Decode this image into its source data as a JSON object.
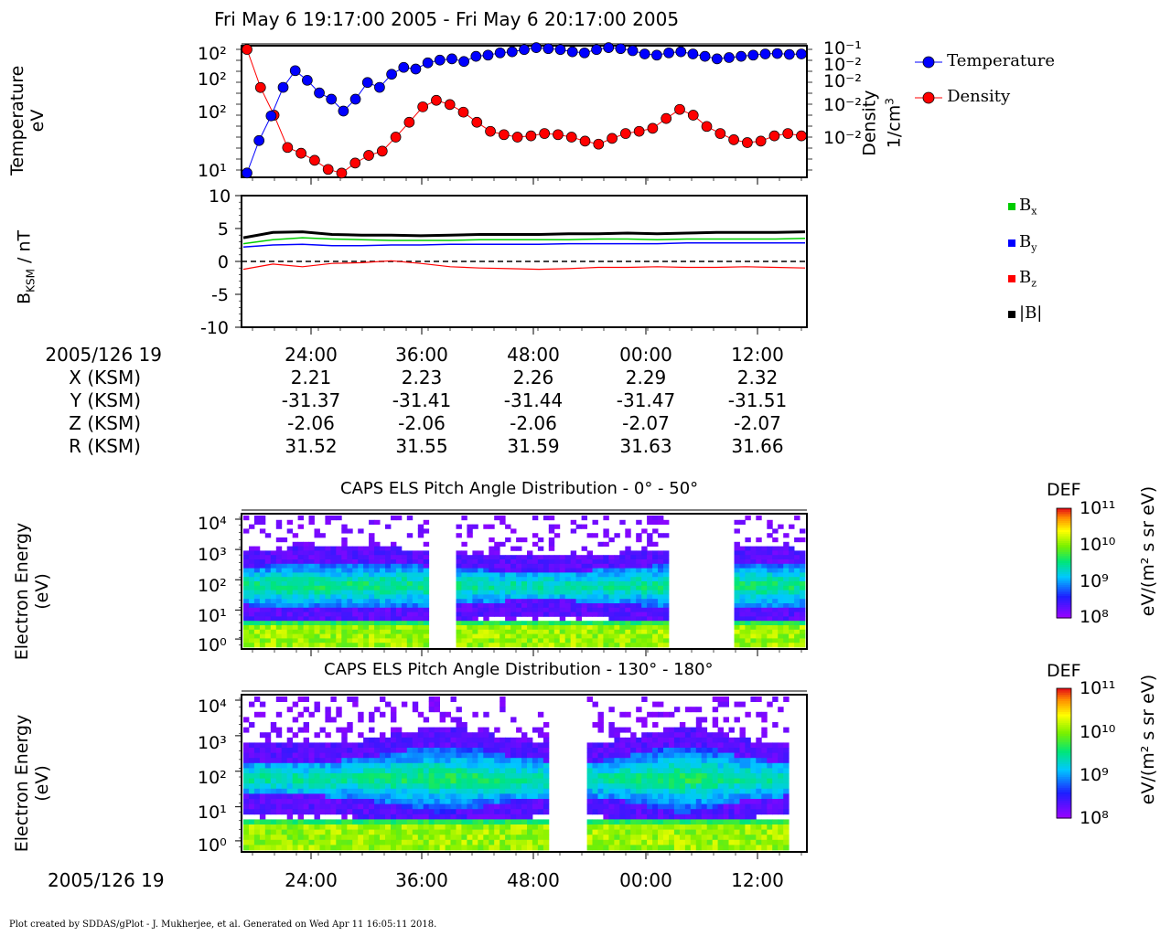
{
  "page_title": "Fri May 6 19:17:00 2005 - Fri May 6 20:17:00 2005",
  "footer": "Plot created by SDDAS/gPlot - J. Mukherjee, et al.  Generated on Wed Apr 11 16:05:11 2018.",
  "colors": {
    "temperature": "#0000ff",
    "density": "#ff0000",
    "bx": "#00cc00",
    "by": "#0000ff",
    "bz": "#ff0000",
    "btot": "#000000"
  },
  "chart_data": [
    {
      "type": "scatter",
      "panel": "moments",
      "ylabel_left": [
        "Temperature",
        "eV"
      ],
      "ylabel_right": [
        "Density",
        "1/cm",
        "3"
      ],
      "left_ticks": [
        "10²",
        "10²",
        "10²",
        "10¹"
      ],
      "right_ticks": [
        "10⁻¹",
        "10⁻²",
        "10⁻²",
        "10⁻²",
        "10⁻²"
      ],
      "legend_position": "top-right",
      "series": [
        {
          "name": "Temperature",
          "color": "#0000ff",
          "values": [
            10,
            22,
            40,
            80,
            120,
            95,
            70,
            60,
            45,
            60,
            90,
            80,
            110,
            130,
            125,
            145,
            155,
            160,
            150,
            170,
            175,
            185,
            190,
            200,
            210,
            205,
            200,
            190,
            185,
            200,
            210,
            205,
            195,
            180,
            175,
            185,
            190,
            180,
            170,
            160,
            165,
            170,
            175,
            180,
            182,
            178,
            180
          ]
        },
        {
          "name": "Density",
          "color": "#ff0000",
          "values": [
            0.04,
            0.012,
            0.005,
            0.0018,
            0.0015,
            0.0012,
            0.0009,
            0.0008,
            0.0011,
            0.0014,
            0.0016,
            0.0025,
            0.004,
            0.0065,
            0.008,
            0.007,
            0.0055,
            0.004,
            0.003,
            0.0027,
            0.0025,
            0.0026,
            0.0028,
            0.0027,
            0.0025,
            0.0022,
            0.002,
            0.0024,
            0.0028,
            0.003,
            0.0033,
            0.0045,
            0.006,
            0.005,
            0.0035,
            0.0028,
            0.0023,
            0.0021,
            0.0022,
            0.0026,
            0.0028,
            0.0026
          ]
        }
      ]
    },
    {
      "type": "line",
      "panel": "magnetic_field",
      "ylabel": "B",
      "ylabel_sub": "KSM",
      "ylabel_unit": " / nT",
      "ylim": [
        -10,
        10
      ],
      "yticks": [
        "10",
        "5",
        "0",
        "-5",
        "-10"
      ],
      "legend_position": "right",
      "series": [
        {
          "name": "B",
          "sub": "x",
          "color": "#00cc00",
          "values": [
            2.7,
            3.3,
            3.6,
            3.4,
            3.3,
            3.2,
            3.2,
            3.2,
            3.3,
            3.3,
            3.3,
            3.3,
            3.4,
            3.4,
            3.3,
            3.4,
            3.4,
            3.4,
            3.4,
            3.5
          ]
        },
        {
          "name": "B",
          "sub": "y",
          "color": "#0000ff",
          "values": [
            2.2,
            2.5,
            2.6,
            2.4,
            2.4,
            2.5,
            2.5,
            2.6,
            2.6,
            2.6,
            2.6,
            2.7,
            2.7,
            2.7,
            2.7,
            2.8,
            2.8,
            2.8,
            2.8,
            2.8
          ]
        },
        {
          "name": "B",
          "sub": "z",
          "color": "#ff0000",
          "values": [
            -1.2,
            -0.4,
            -0.8,
            -0.3,
            -0.2,
            0.1,
            -0.3,
            -0.8,
            -1.0,
            -1.1,
            -1.2,
            -1.1,
            -0.9,
            -0.9,
            -0.8,
            -0.9,
            -0.9,
            -0.8,
            -0.9,
            -1.0
          ]
        },
        {
          "name": "|B|",
          "color": "#000000",
          "values": [
            3.6,
            4.4,
            4.5,
            4.1,
            4.0,
            4.0,
            3.9,
            4.0,
            4.1,
            4.1,
            4.1,
            4.2,
            4.2,
            4.3,
            4.2,
            4.3,
            4.4,
            4.4,
            4.4,
            4.5
          ]
        }
      ]
    },
    {
      "type": "heatmap",
      "panel": "pad_0_50",
      "title": "CAPS ELS Pitch Angle Distribution - 0° - 50°",
      "ylabel": [
        "Electron Energy",
        "(eV)"
      ],
      "yticks": [
        "10⁴",
        "10³",
        "10²",
        "10¹",
        "10⁰"
      ],
      "colorbar": {
        "label": "DEF",
        "unit": "eV/(m² s sr eV)",
        "ticks": [
          "10¹¹",
          "10¹⁰",
          "10⁹",
          "10⁸"
        ]
      }
    },
    {
      "type": "heatmap",
      "panel": "pad_130_180",
      "title": "CAPS ELS Pitch Angle Distribution - 130° - 180°",
      "ylabel": [
        "Electron Energy",
        "(eV)"
      ],
      "yticks": [
        "10⁴",
        "10³",
        "10²",
        "10¹",
        "10⁰"
      ],
      "colorbar": {
        "label": "DEF",
        "unit": "eV/(m² s sr eV)",
        "ticks": [
          "10¹¹",
          "10¹⁰",
          "10⁹",
          "10⁸"
        ]
      }
    }
  ],
  "ephemeris": {
    "labels": [
      "2005/126 19",
      "X (KSM)",
      "Y (KSM)",
      "Z (KSM)",
      "R (KSM)"
    ],
    "times": [
      "24:00",
      "36:00",
      "48:00",
      "00:00",
      "12:00"
    ],
    "x": [
      "2.21",
      "2.23",
      "2.26",
      "2.29",
      "2.32"
    ],
    "y": [
      "-31.37",
      "-31.41",
      "-31.44",
      "-31.47",
      "-31.51"
    ],
    "z": [
      "-2.06",
      "-2.06",
      "-2.06",
      "-2.07",
      "-2.07"
    ],
    "r": [
      "31.52",
      "31.55",
      "31.59",
      "31.63",
      "31.66"
    ]
  },
  "bottom_axis": {
    "label": "2005/126 19",
    "times": [
      "24:00",
      "36:00",
      "48:00",
      "00:00",
      "12:00"
    ]
  }
}
